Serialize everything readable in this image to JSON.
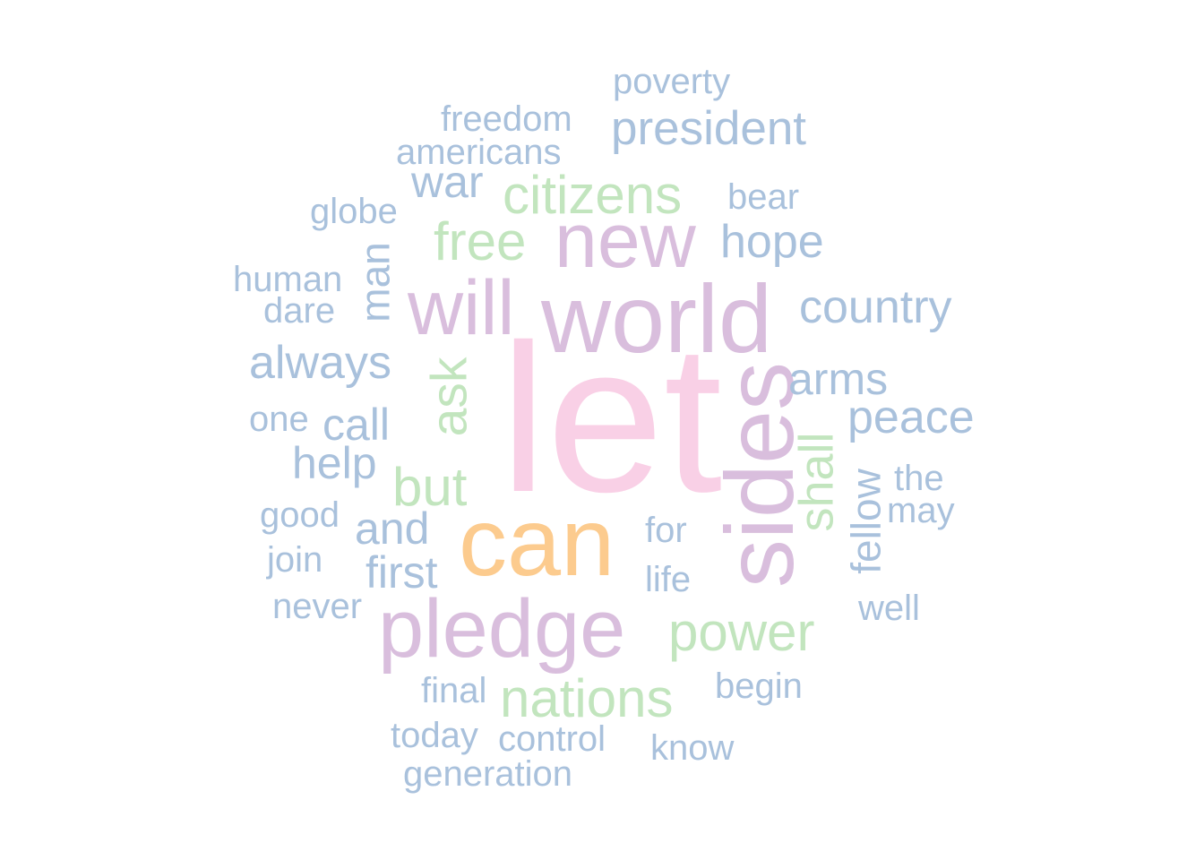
{
  "chart_data": {
    "type": "wordcloud",
    "colors": {
      "pink": "#F9D0E6",
      "orange": "#FCCB8E",
      "purple": "#D9BEDD",
      "green": "#C2E5BE",
      "blue": "#A9C1DC"
    },
    "words": [
      {
        "text": "let",
        "color": "pink",
        "rotated": false
      },
      {
        "text": "can",
        "color": "orange",
        "rotated": false
      },
      {
        "text": "world",
        "color": "purple",
        "rotated": false
      },
      {
        "text": "sides",
        "color": "purple",
        "rotated": true
      },
      {
        "text": "pledge",
        "color": "purple",
        "rotated": false
      },
      {
        "text": "new",
        "color": "purple",
        "rotated": false
      },
      {
        "text": "will",
        "color": "purple",
        "rotated": false
      },
      {
        "text": "citizens",
        "color": "green",
        "rotated": false
      },
      {
        "text": "free",
        "color": "green",
        "rotated": false
      },
      {
        "text": "nations",
        "color": "green",
        "rotated": false
      },
      {
        "text": "power",
        "color": "green",
        "rotated": false
      },
      {
        "text": "but",
        "color": "green",
        "rotated": false
      },
      {
        "text": "ask",
        "color": "green",
        "rotated": true
      },
      {
        "text": "shall",
        "color": "green",
        "rotated": true
      },
      {
        "text": "president",
        "color": "blue",
        "rotated": false
      },
      {
        "text": "country",
        "color": "blue",
        "rotated": false
      },
      {
        "text": "peace",
        "color": "blue",
        "rotated": false
      },
      {
        "text": "hope",
        "color": "blue",
        "rotated": false
      },
      {
        "text": "always",
        "color": "blue",
        "rotated": false
      },
      {
        "text": "arms",
        "color": "blue",
        "rotated": false
      },
      {
        "text": "war",
        "color": "blue",
        "rotated": false
      },
      {
        "text": "help",
        "color": "blue",
        "rotated": false
      },
      {
        "text": "call",
        "color": "blue",
        "rotated": false
      },
      {
        "text": "and",
        "color": "blue",
        "rotated": false
      },
      {
        "text": "first",
        "color": "blue",
        "rotated": false
      },
      {
        "text": "man",
        "color": "blue",
        "rotated": true
      },
      {
        "text": "fellow",
        "color": "blue",
        "rotated": true
      },
      {
        "text": "poverty",
        "color": "blue",
        "rotated": false
      },
      {
        "text": "freedom",
        "color": "blue",
        "rotated": false
      },
      {
        "text": "americans",
        "color": "blue",
        "rotated": false
      },
      {
        "text": "globe",
        "color": "blue",
        "rotated": false
      },
      {
        "text": "bear",
        "color": "blue",
        "rotated": false
      },
      {
        "text": "human",
        "color": "blue",
        "rotated": false
      },
      {
        "text": "dare",
        "color": "blue",
        "rotated": false
      },
      {
        "text": "one",
        "color": "blue",
        "rotated": false
      },
      {
        "text": "good",
        "color": "blue",
        "rotated": false
      },
      {
        "text": "join",
        "color": "blue",
        "rotated": false
      },
      {
        "text": "never",
        "color": "blue",
        "rotated": false
      },
      {
        "text": "the",
        "color": "blue",
        "rotated": false
      },
      {
        "text": "may",
        "color": "blue",
        "rotated": false
      },
      {
        "text": "for",
        "color": "blue",
        "rotated": false
      },
      {
        "text": "life",
        "color": "blue",
        "rotated": false
      },
      {
        "text": "well",
        "color": "blue",
        "rotated": false
      },
      {
        "text": "final",
        "color": "blue",
        "rotated": false
      },
      {
        "text": "begin",
        "color": "blue",
        "rotated": false
      },
      {
        "text": "today",
        "color": "blue",
        "rotated": false
      },
      {
        "text": "control",
        "color": "blue",
        "rotated": false
      },
      {
        "text": "know",
        "color": "blue",
        "rotated": false
      },
      {
        "text": "generation",
        "color": "blue",
        "rotated": false
      }
    ]
  }
}
